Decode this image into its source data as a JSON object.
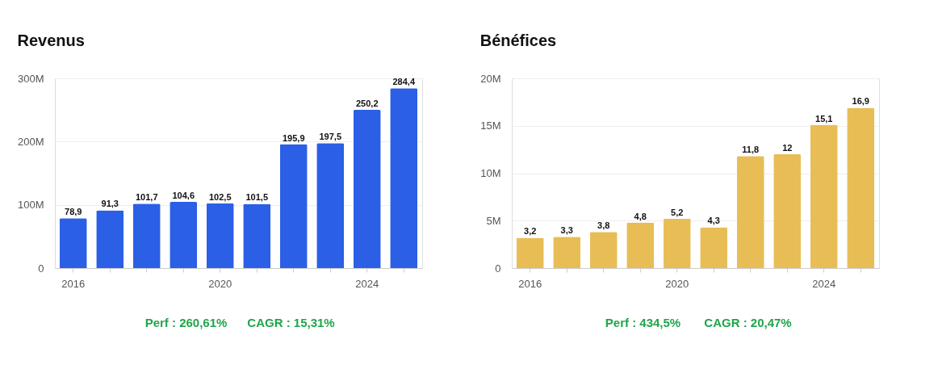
{
  "chart_data": [
    {
      "type": "bar",
      "title": "Revenus",
      "categories": [
        "2016",
        null,
        null,
        null,
        "2020",
        null,
        null,
        null,
        "2024",
        null
      ],
      "values": [
        78.9,
        91.3,
        101.7,
        104.6,
        102.5,
        101.5,
        195.9,
        197.5,
        250.2,
        284.4
      ],
      "value_labels": [
        "78,9",
        "91,3",
        "101,7",
        "104,6",
        "102,5",
        "101,5",
        "195,9",
        "197,5",
        "250,2",
        "284,4"
      ],
      "color": "#2a5fe6",
      "ylim": [
        0,
        300
      ],
      "yticks": [
        0,
        {
          "value": 100,
          "label": "100M"
        },
        {
          "value": 200,
          "label": "200M"
        },
        {
          "value": 300,
          "label": "300M"
        }
      ],
      "grid": "y",
      "annotations": [
        "Perf : 260,61%",
        "CAGR : 15,31%"
      ]
    },
    {
      "type": "bar",
      "title": "Bénéfices",
      "categories": [
        "2016",
        null,
        null,
        null,
        "2020",
        null,
        null,
        null,
        "2024",
        null
      ],
      "values": [
        3.2,
        3.3,
        3.8,
        4.8,
        5.2,
        4.3,
        11.8,
        12,
        15.1,
        16.9
      ],
      "value_labels": [
        "3,2",
        "3,3",
        "3,8",
        "4,8",
        "5,2",
        "4,3",
        "11,8",
        "12",
        "15,1",
        "16,9"
      ],
      "color": "#e9bd56",
      "ylim": [
        0,
        20
      ],
      "yticks": [
        0,
        {
          "value": 5,
          "label": "5M"
        },
        {
          "value": 10,
          "label": "10M"
        },
        {
          "value": 15,
          "label": "15M"
        },
        {
          "value": 20,
          "label": "20M"
        }
      ],
      "grid": "y",
      "annotations": [
        "Perf : 434,5%",
        "CAGR : 20,47%"
      ]
    }
  ]
}
